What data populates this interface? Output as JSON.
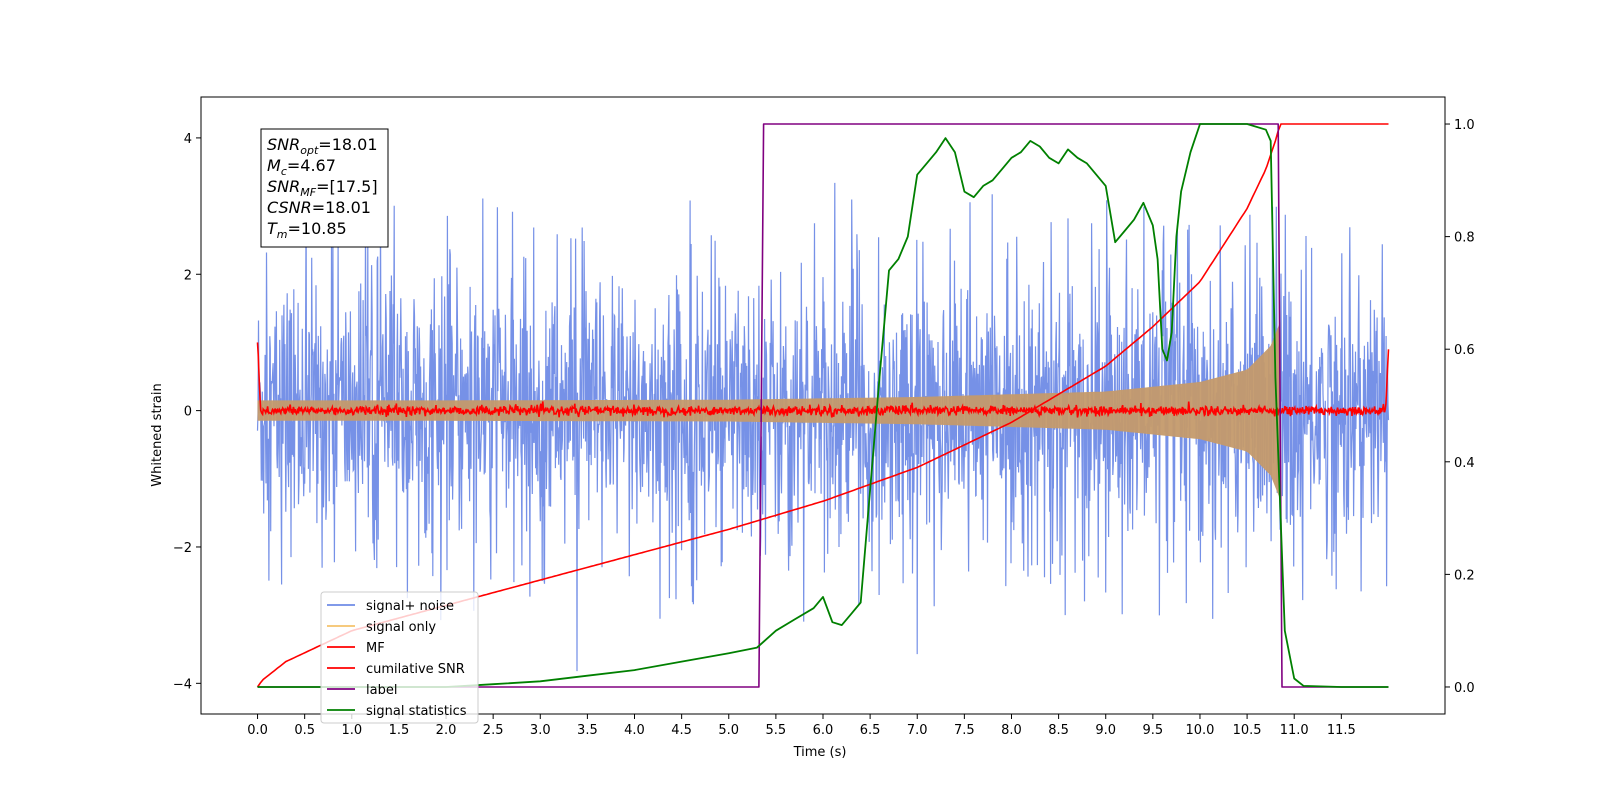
{
  "chart_data": {
    "type": "line",
    "xlabel": "Time (s)",
    "ylabel": "Whitened strain",
    "xlim": [
      -0.6,
      12.6
    ],
    "ylim": [
      -4.45,
      4.6
    ],
    "y2lim": [
      -0.048,
      1.048
    ],
    "x_ticks": [
      0.0,
      0.5,
      1.0,
      1.5,
      2.0,
      2.5,
      3.0,
      3.5,
      4.0,
      4.5,
      5.0,
      5.5,
      6.0,
      6.5,
      7.0,
      7.5,
      8.0,
      8.5,
      9.0,
      9.5,
      10.0,
      10.5,
      11.0,
      11.5
    ],
    "x_tick_labels": [
      "0.0",
      "0.5",
      "1.0",
      "1.5",
      "2.0",
      "2.5",
      "3.0",
      "3.5",
      "4.0",
      "4.5",
      "5.0",
      "5.5",
      "6.0",
      "6.5",
      "7.0",
      "7.5",
      "8.0",
      "8.5",
      "9.0",
      "9.5",
      "10.0",
      "10.5",
      "11.0",
      "11.5"
    ],
    "y_ticks": [
      -4,
      -2,
      0,
      2,
      4
    ],
    "y_tick_labels": [
      "−4",
      "−2",
      "0",
      "2",
      "4"
    ],
    "y2_ticks": [
      0.0,
      0.2,
      0.4,
      0.6,
      0.8,
      1.0
    ],
    "y2_tick_labels": [
      "0.0",
      "0.2",
      "0.4",
      "0.6",
      "0.8",
      "1.0"
    ],
    "grid": false,
    "legend_position": "lower-left",
    "legend": [
      {
        "label": "signal+ noise",
        "color": "#6f8be6"
      },
      {
        "label": "signal only",
        "color": "#f5c26b"
      },
      {
        "label": "MF",
        "color": "#ff0000"
      },
      {
        "label": "cumilative SNR",
        "color": "#ff0000"
      },
      {
        "label": "label",
        "color": "#800080"
      },
      {
        "label": "signal statistics",
        "color": "#008000"
      }
    ],
    "annotation": {
      "lines": [
        {
          "sym": "SNR",
          "sub": "opt",
          "value": "=18.01"
        },
        {
          "sym": "M",
          "sub": "c",
          "value": "=4.67"
        },
        {
          "sym": "SNR",
          "sub": "MF",
          "value": "=[17.5]"
        },
        {
          "sym": "CSNR",
          "sub": "",
          "value": "=18.01"
        },
        {
          "sym": "T",
          "sub": "m",
          "value": "=10.85"
        }
      ]
    },
    "series": [
      {
        "name": "signal+ noise",
        "axis": "left",
        "color": "#6f8be6",
        "style": "noise",
        "x_range": [
          0.0,
          12.0
        ],
        "envelope": {
          "typical": 1.7,
          "peaks_up": 4.17,
          "peaks_down": -4.0
        }
      },
      {
        "name": "signal only",
        "axis": "left",
        "color": "#c49a6c",
        "style": "chirp",
        "x_range": [
          0.0,
          10.85
        ],
        "amplitude": {
          "x": [
            0.0,
            2.0,
            5.0,
            7.0,
            9.0,
            10.0,
            10.5,
            10.75,
            10.85
          ],
          "y": [
            0.15,
            0.15,
            0.16,
            0.2,
            0.28,
            0.42,
            0.6,
            0.95,
            1.3
          ]
        }
      },
      {
        "name": "MF",
        "axis": "left",
        "color": "#ff0000",
        "style": "noise",
        "x_range": [
          0.0,
          12.0
        ],
        "endpoints": {
          "start": 1.0,
          "end": 0.9
        },
        "envelope": {
          "typical": 0.06,
          "peaks_up": 0.15,
          "peaks_down": -0.1
        }
      },
      {
        "name": "cumilative SNR",
        "axis": "right",
        "color": "#ff0000",
        "x": [
          0.0,
          0.05,
          0.3,
          1.0,
          2.0,
          3.0,
          4.0,
          5.0,
          6.0,
          7.0,
          8.0,
          9.0,
          9.5,
          10.0,
          10.5,
          10.7,
          10.8,
          10.85,
          12.0
        ],
        "y": [
          0.0,
          0.012,
          0.045,
          0.1,
          0.145,
          0.19,
          0.235,
          0.28,
          0.33,
          0.39,
          0.47,
          0.57,
          0.64,
          0.72,
          0.85,
          0.92,
          0.97,
          1.0,
          1.0
        ]
      },
      {
        "name": "label",
        "axis": "right",
        "color": "#800080",
        "x": [
          0.0,
          5.32,
          5.37,
          10.83,
          10.87,
          12.0
        ],
        "y": [
          0.0,
          0.0,
          1.0,
          1.0,
          0.0,
          0.0
        ]
      },
      {
        "name": "signal statistics",
        "axis": "right",
        "color": "#008000",
        "x": [
          0.0,
          1.0,
          2.0,
          2.5,
          3.0,
          3.5,
          4.0,
          4.5,
          5.0,
          5.3,
          5.5,
          5.7,
          5.9,
          6.0,
          6.1,
          6.2,
          6.3,
          6.4,
          6.5,
          6.6,
          6.7,
          6.8,
          6.9,
          7.0,
          7.1,
          7.2,
          7.3,
          7.4,
          7.5,
          7.6,
          7.7,
          7.8,
          7.9,
          8.0,
          8.1,
          8.2,
          8.3,
          8.4,
          8.5,
          8.6,
          8.7,
          8.8,
          8.9,
          9.0,
          9.1,
          9.2,
          9.3,
          9.4,
          9.5,
          9.55,
          9.6,
          9.65,
          9.7,
          9.75,
          9.8,
          9.9,
          10.0,
          10.2,
          10.5,
          10.7,
          10.75,
          10.8,
          10.9,
          11.0,
          11.1,
          11.5,
          12.0
        ],
        "y": [
          0.0,
          0.0,
          0.0,
          0.005,
          0.01,
          0.02,
          0.03,
          0.045,
          0.06,
          0.07,
          0.1,
          0.12,
          0.14,
          0.16,
          0.115,
          0.11,
          0.13,
          0.15,
          0.35,
          0.55,
          0.74,
          0.76,
          0.8,
          0.91,
          0.93,
          0.95,
          0.975,
          0.95,
          0.88,
          0.87,
          0.89,
          0.9,
          0.92,
          0.94,
          0.95,
          0.97,
          0.96,
          0.94,
          0.93,
          0.955,
          0.94,
          0.93,
          0.91,
          0.89,
          0.79,
          0.81,
          0.83,
          0.86,
          0.82,
          0.76,
          0.6,
          0.58,
          0.63,
          0.8,
          0.88,
          0.95,
          1.0,
          1.0,
          1.0,
          0.99,
          0.97,
          0.55,
          0.1,
          0.015,
          0.002,
          0.0,
          0.0
        ]
      }
    ]
  }
}
